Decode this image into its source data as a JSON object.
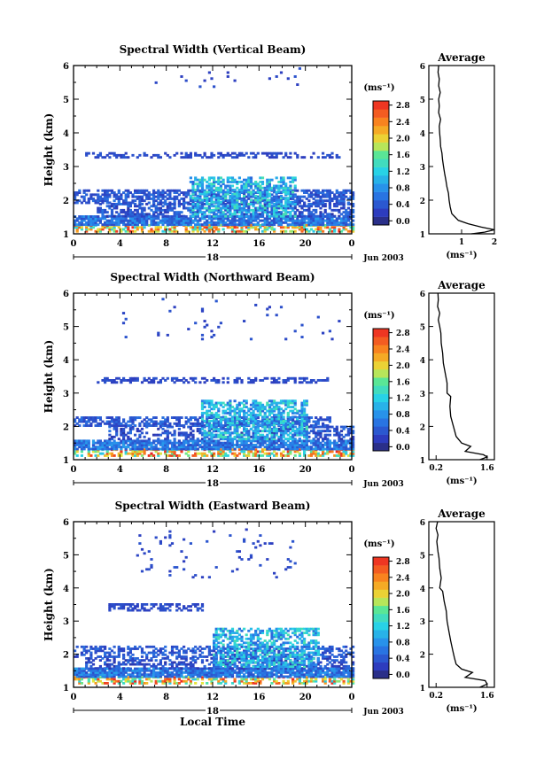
{
  "figure": {
    "time_axis_label": "Local Time",
    "date_label": "Jun 2003",
    "day_label": "18",
    "colorbar_unit": "(ms⁻¹)",
    "avg_unit": "(ms⁻¹)"
  },
  "chart_data": [
    {
      "type": "heatmap",
      "title": "Spectral Width (Vertical Beam)",
      "xlabel": "",
      "ylabel": "Height (km)",
      "xticks": [
        "0",
        "4",
        "8",
        "12",
        "16",
        "20",
        "0"
      ],
      "yticks": [
        "1",
        "2",
        "3",
        "4",
        "5",
        "6"
      ],
      "xlim": [
        0,
        24
      ],
      "ylim": [
        1,
        6
      ],
      "colorbar": {
        "ticks": [
          "2.8",
          "2.4",
          "2.0",
          "1.6",
          "1.2",
          "0.8",
          "0.4",
          "0.0"
        ],
        "range": [
          0,
          3.0
        ]
      },
      "average": {
        "title": "Average",
        "xlabel": "(ms⁻¹)",
        "xticks": [
          "1",
          "2"
        ],
        "xlim": [
          0,
          2
        ],
        "ylim": [
          1,
          6
        ],
        "profile": [
          [
            1.0,
            1.3
          ],
          [
            1.05,
            1.7
          ],
          [
            1.12,
            2.0
          ],
          [
            1.2,
            1.6
          ],
          [
            1.3,
            1.2
          ],
          [
            1.4,
            0.9
          ],
          [
            1.5,
            0.8
          ],
          [
            1.6,
            0.7
          ],
          [
            1.8,
            0.65
          ],
          [
            2.0,
            0.62
          ],
          [
            2.2,
            0.6
          ],
          [
            2.4,
            0.55
          ],
          [
            2.6,
            0.52
          ],
          [
            2.8,
            0.48
          ],
          [
            3.0,
            0.45
          ],
          [
            3.2,
            0.42
          ],
          [
            3.4,
            0.4
          ],
          [
            3.6,
            0.36
          ],
          [
            3.8,
            0.35
          ],
          [
            4.0,
            0.33
          ],
          [
            4.2,
            0.32
          ],
          [
            4.4,
            0.36
          ],
          [
            4.6,
            0.3
          ],
          [
            4.8,
            0.32
          ],
          [
            5.0,
            0.3
          ],
          [
            5.2,
            0.35
          ],
          [
            5.4,
            0.3
          ],
          [
            5.6,
            0.32
          ],
          [
            5.8,
            0.28
          ],
          [
            6.0,
            0.3
          ]
        ]
      },
      "bands": [
        {
          "h": [
            1.05,
            1.25
          ],
          "t": [
            0,
            24
          ],
          "w": [
            1.2,
            3.0
          ],
          "cov": 0.55
        },
        {
          "h": [
            1.25,
            1.5
          ],
          "t": [
            0,
            24
          ],
          "w": [
            0.4,
            1.0
          ],
          "cov": 0.85
        },
        {
          "h": [
            1.5,
            1.9
          ],
          "t": [
            2,
            24
          ],
          "w": [
            0.2,
            0.7
          ],
          "cov": 0.55
        },
        {
          "h": [
            1.9,
            2.3
          ],
          "t": [
            0,
            24
          ],
          "w": [
            0.3,
            0.7
          ],
          "cov": 0.6
        },
        {
          "h": [
            1.5,
            2.7
          ],
          "t": [
            10,
            19
          ],
          "w": [
            0.6,
            1.6
          ],
          "cov": 0.55
        },
        {
          "h": [
            3.25,
            3.4
          ],
          "t": [
            1,
            23
          ],
          "w": [
            0.3,
            0.5
          ],
          "cov": 0.35
        },
        {
          "h": [
            5.35,
            5.9
          ],
          "t": [
            7,
            20
          ],
          "w": [
            0.3,
            0.5
          ],
          "cov": 0.03
        }
      ]
    },
    {
      "type": "heatmap",
      "title": "Spectral Width (Northward Beam)",
      "xlabel": "",
      "ylabel": "Height (km)",
      "xticks": [
        "0",
        "4",
        "8",
        "12",
        "16",
        "20",
        "0"
      ],
      "yticks": [
        "1",
        "2",
        "3",
        "4",
        "5",
        "6"
      ],
      "xlim": [
        0,
        24
      ],
      "ylim": [
        1,
        6
      ],
      "colorbar": {
        "ticks": [
          "2.8",
          "2.4",
          "2.0",
          "1.6",
          "1.2",
          "0.8",
          "0.4",
          "0.0"
        ],
        "range": [
          0,
          3.0
        ]
      },
      "average": {
        "title": "Average",
        "xlabel": "(ms⁻¹)",
        "xticks": [
          "0.2",
          "1.6"
        ],
        "xlim": [
          0,
          1.8
        ],
        "ylim": [
          1,
          6
        ],
        "profile": [
          [
            1.0,
            1.4
          ],
          [
            1.08,
            1.6
          ],
          [
            1.15,
            1.5
          ],
          [
            1.25,
            1.0
          ],
          [
            1.4,
            1.15
          ],
          [
            1.5,
            0.9
          ],
          [
            1.7,
            0.75
          ],
          [
            1.9,
            0.7
          ],
          [
            2.1,
            0.65
          ],
          [
            2.3,
            0.6
          ],
          [
            2.6,
            0.58
          ],
          [
            2.9,
            0.6
          ],
          [
            3.0,
            0.5
          ],
          [
            3.3,
            0.5
          ],
          [
            3.6,
            0.45
          ],
          [
            3.9,
            0.4
          ],
          [
            4.2,
            0.38
          ],
          [
            4.5,
            0.34
          ],
          [
            4.8,
            0.33
          ],
          [
            5.0,
            0.3
          ],
          [
            5.2,
            0.26
          ],
          [
            5.4,
            0.3
          ],
          [
            5.6,
            0.24
          ],
          [
            5.8,
            0.26
          ],
          [
            6.0,
            0.25
          ]
        ]
      },
      "bands": [
        {
          "h": [
            1.1,
            1.3
          ],
          "t": [
            0,
            24
          ],
          "w": [
            1.2,
            3.0
          ],
          "cov": 0.55
        },
        {
          "h": [
            1.3,
            1.6
          ],
          "t": [
            0,
            24
          ],
          "w": [
            0.4,
            1.0
          ],
          "cov": 0.85
        },
        {
          "h": [
            1.6,
            2.0
          ],
          "t": [
            3,
            24
          ],
          "w": [
            0.2,
            0.7
          ],
          "cov": 0.45
        },
        {
          "h": [
            2.0,
            2.3
          ],
          "t": [
            0,
            22
          ],
          "w": [
            0.3,
            0.7
          ],
          "cov": 0.6
        },
        {
          "h": [
            1.6,
            2.8
          ],
          "t": [
            11,
            20
          ],
          "w": [
            0.6,
            1.6
          ],
          "cov": 0.55
        },
        {
          "h": [
            3.3,
            3.45
          ],
          "t": [
            2,
            22
          ],
          "w": [
            0.3,
            0.5
          ],
          "cov": 0.5
        },
        {
          "h": [
            4.6,
            5.8
          ],
          "t": [
            4,
            23
          ],
          "w": [
            0.3,
            0.5
          ],
          "cov": 0.02
        }
      ]
    },
    {
      "type": "heatmap",
      "title": "Spectral Width (Eastward Beam)",
      "xlabel": "Local Time",
      "ylabel": "Height (km)",
      "xticks": [
        "0",
        "4",
        "8",
        "12",
        "16",
        "20",
        "0"
      ],
      "yticks": [
        "1",
        "2",
        "3",
        "4",
        "5",
        "6"
      ],
      "xlim": [
        0,
        24
      ],
      "ylim": [
        1,
        6
      ],
      "colorbar": {
        "ticks": [
          "2.8",
          "2.4",
          "2.0",
          "1.6",
          "1.2",
          "0.8",
          "0.4",
          "0.0"
        ],
        "range": [
          0,
          3.0
        ]
      },
      "average": {
        "title": "Average",
        "xlabel": "(ms⁻¹)",
        "xticks": [
          "0.2",
          "1.6"
        ],
        "xlim": [
          0,
          1.8
        ],
        "ylim": [
          1,
          6
        ],
        "profile": [
          [
            1.0,
            1.4
          ],
          [
            1.1,
            1.6
          ],
          [
            1.2,
            1.55
          ],
          [
            1.3,
            1.0
          ],
          [
            1.45,
            1.2
          ],
          [
            1.55,
            0.9
          ],
          [
            1.7,
            0.75
          ],
          [
            1.9,
            0.7
          ],
          [
            2.1,
            0.66
          ],
          [
            2.4,
            0.6
          ],
          [
            2.7,
            0.55
          ],
          [
            3.0,
            0.5
          ],
          [
            3.3,
            0.48
          ],
          [
            3.6,
            0.42
          ],
          [
            3.9,
            0.38
          ],
          [
            4.0,
            0.3
          ],
          [
            4.3,
            0.34
          ],
          [
            4.6,
            0.3
          ],
          [
            4.9,
            0.28
          ],
          [
            5.1,
            0.25
          ],
          [
            5.4,
            0.22
          ],
          [
            5.6,
            0.25
          ],
          [
            5.8,
            0.2
          ],
          [
            6.0,
            0.24
          ]
        ]
      },
      "bands": [
        {
          "h": [
            1.1,
            1.3
          ],
          "t": [
            0,
            24
          ],
          "w": [
            1.2,
            3.0
          ],
          "cov": 0.5
        },
        {
          "h": [
            1.3,
            1.55
          ],
          "t": [
            0,
            24
          ],
          "w": [
            0.4,
            1.0
          ],
          "cov": 0.85
        },
        {
          "h": [
            1.55,
            1.9
          ],
          "t": [
            1,
            24
          ],
          "w": [
            0.2,
            0.7
          ],
          "cov": 0.45
        },
        {
          "h": [
            1.9,
            2.25
          ],
          "t": [
            0,
            24
          ],
          "w": [
            0.3,
            0.7
          ],
          "cov": 0.5
        },
        {
          "h": [
            1.6,
            2.8
          ],
          "t": [
            12,
            21
          ],
          "w": [
            0.6,
            1.6
          ],
          "cov": 0.55
        },
        {
          "h": [
            3.3,
            3.5
          ],
          "t": [
            3,
            11
          ],
          "w": [
            0.3,
            0.5
          ],
          "cov": 0.5
        },
        {
          "h": [
            4.3,
            5.8
          ],
          "t": [
            5,
            19
          ],
          "w": [
            0.3,
            0.5
          ],
          "cov": 0.03
        }
      ]
    }
  ]
}
